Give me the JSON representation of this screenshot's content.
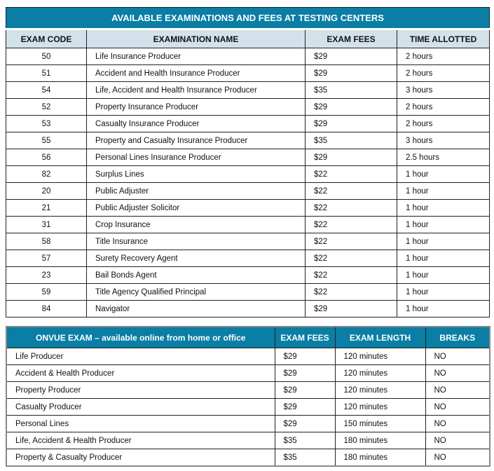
{
  "testing_centers": {
    "title": "AVAILABLE EXAMINATIONS AND FEES AT TESTING CENTERS",
    "headers": [
      "EXAM CODE",
      "EXAMINATION NAME",
      "EXAM FEES",
      "TIME ALLOTTED"
    ],
    "rows": [
      [
        "50",
        "Life Insurance Producer",
        "$29",
        "2 hours"
      ],
      [
        "51",
        "Accident and Health Insurance Producer",
        "$29",
        "2 hours"
      ],
      [
        "54",
        "Life, Accident and Health Insurance Producer",
        "$35",
        "3 hours"
      ],
      [
        "52",
        "Property Insurance Producer",
        "$29",
        "2 hours"
      ],
      [
        "53",
        "Casualty Insurance Producer",
        "$29",
        "2 hours"
      ],
      [
        "55",
        "Property and Casualty Insurance Producer",
        "$35",
        "3 hours"
      ],
      [
        "56",
        "Personal Lines Insurance Producer",
        "$29",
        "2.5 hours"
      ],
      [
        "82",
        "Surplus Lines",
        "$22",
        "1 hour"
      ],
      [
        "20",
        "Public Adjuster",
        "$22",
        "1 hour"
      ],
      [
        "21",
        "Public Adjuster Solicitor",
        "$22",
        "1 hour"
      ],
      [
        "31",
        "Crop Insurance",
        "$22",
        "1 hour"
      ],
      [
        "58",
        "Title Insurance",
        "$22",
        "1 hour"
      ],
      [
        "57",
        "Surety Recovery Agent",
        "$22",
        "1 hour"
      ],
      [
        "23",
        "Bail Bonds Agent",
        "$22",
        "1 hour"
      ],
      [
        "59",
        "Title Agency Qualified Principal",
        "$22",
        "1 hour"
      ],
      [
        "84",
        "Navigator",
        "$29",
        "1 hour"
      ]
    ]
  },
  "onvue": {
    "headers": [
      "ONVUE EXAM – available online from home or office",
      "EXAM FEES",
      "EXAM LENGTH",
      "BREAKS"
    ],
    "rows": [
      [
        "Life Producer",
        "$29",
        "120 minutes",
        "NO"
      ],
      [
        "Accident & Health Producer",
        "$29",
        "120 minutes",
        "NO"
      ],
      [
        "Property Producer",
        "$29",
        "120 minutes",
        "NO"
      ],
      [
        "Casualty Producer",
        "$29",
        "120 minutes",
        "NO"
      ],
      [
        "Personal Lines",
        "$29",
        "150 minutes",
        "NO"
      ],
      [
        "Life, Accident & Health Producer",
        "$35",
        "180 minutes",
        "NO"
      ],
      [
        "Property & Casualty Producer",
        "$35",
        "180 minutes",
        "NO"
      ]
    ]
  },
  "colors": {
    "header_teal": "#0a7ea4",
    "header_light": "#d3e2ea"
  }
}
